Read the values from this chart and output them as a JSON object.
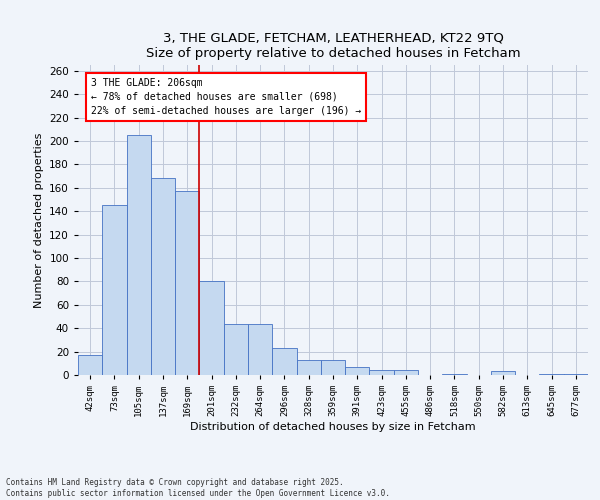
{
  "title1": "3, THE GLADE, FETCHAM, LEATHERHEAD, KT22 9TQ",
  "title2": "Size of property relative to detached houses in Fetcham",
  "xlabel": "Distribution of detached houses by size in Fetcham",
  "ylabel": "Number of detached properties",
  "bar_labels": [
    "42sqm",
    "73sqm",
    "105sqm",
    "137sqm",
    "169sqm",
    "201sqm",
    "232sqm",
    "264sqm",
    "296sqm",
    "328sqm",
    "359sqm",
    "391sqm",
    "423sqm",
    "455sqm",
    "486sqm",
    "518sqm",
    "550sqm",
    "582sqm",
    "613sqm",
    "645sqm",
    "677sqm"
  ],
  "bar_values": [
    17,
    145,
    205,
    168,
    157,
    80,
    44,
    44,
    23,
    13,
    13,
    7,
    4,
    4,
    0,
    1,
    0,
    3,
    0,
    1,
    1
  ],
  "bar_color": "#c5d9f0",
  "bar_edge_color": "#4472c4",
  "highlight_index": 5,
  "vline_color": "#cc0000",
  "annotation_text": "3 THE GLADE: 206sqm\n← 78% of detached houses are smaller (698)\n22% of semi-detached houses are larger (196) →",
  "footer_text": "Contains HM Land Registry data © Crown copyright and database right 2025.\nContains public sector information licensed under the Open Government Licence v3.0.",
  "ylim": [
    0,
    265
  ],
  "yticks": [
    0,
    20,
    40,
    60,
    80,
    100,
    120,
    140,
    160,
    180,
    200,
    220,
    240,
    260
  ],
  "bg_color": "#f0f4fa",
  "grid_color": "#c0c8d8"
}
